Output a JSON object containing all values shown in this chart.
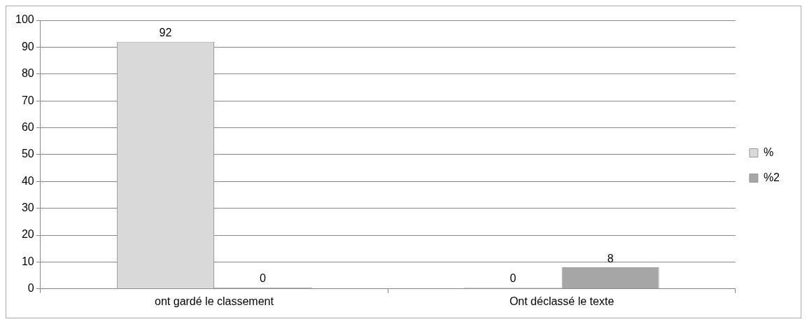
{
  "chart_data": {
    "type": "bar",
    "categories": [
      "ont gardé le classement",
      "Ont déclassé le texte"
    ],
    "series": [
      {
        "name": "%",
        "color": "#d9d9d9",
        "values": [
          92,
          0
        ]
      },
      {
        "name": "%2",
        "color": "#a6a6a6",
        "values": [
          0,
          8
        ]
      }
    ],
    "ylim": [
      0,
      100
    ],
    "yticks": [
      0,
      10,
      20,
      30,
      40,
      50,
      60,
      70,
      80,
      90,
      100
    ],
    "grid": "y",
    "legend": "right",
    "data_labels": true
  }
}
